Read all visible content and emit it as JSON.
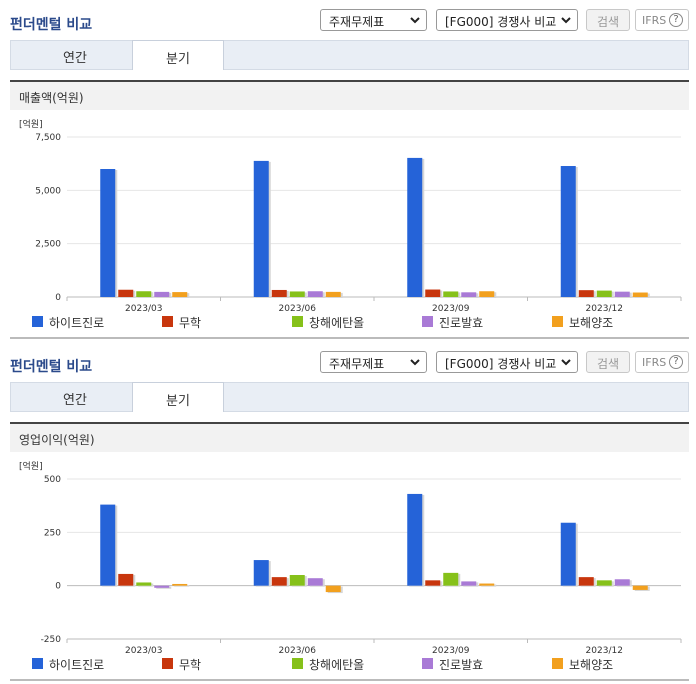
{
  "sections": [
    {
      "title": "펀더멘털 비교",
      "report_select": "주재무제표",
      "compare_select": "[FG000] 경쟁사 비교",
      "search_button": "검색",
      "ifrs_label": "IFRS",
      "ifrs_help": "?",
      "tabs": [
        "연간",
        "분기"
      ],
      "active_tab": 1,
      "panel_title": "매출액(억원)"
    },
    {
      "title": "펀더멘털 비교",
      "report_select": "주재무제표",
      "compare_select": "[FG000] 경쟁사 비교",
      "search_button": "검색",
      "ifrs_label": "IFRS",
      "ifrs_help": "?",
      "tabs": [
        "연간",
        "분기"
      ],
      "active_tab": 1,
      "panel_title": "영업이익(억원)"
    }
  ],
  "legend": [
    {
      "label": "하이트진로",
      "color": "#2563d8"
    },
    {
      "label": "무학",
      "color": "#c8360d"
    },
    {
      "label": "창해에탄올",
      "color": "#86c11a"
    },
    {
      "label": "진로발효",
      "color": "#a97ad6"
    },
    {
      "label": "보해양조",
      "color": "#f2a01e"
    }
  ],
  "chart_data": [
    {
      "type": "bar",
      "title": "매출액(억원)",
      "ylabel": "[억원]",
      "ylim": [
        0,
        7500
      ],
      "yticks": [
        0,
        2500,
        5000,
        7500
      ],
      "ytick_labels": [
        "0",
        "2,500",
        "5,000",
        "7,500"
      ],
      "categories": [
        "2023/03",
        "2023/06",
        "2023/09",
        "2023/12"
      ],
      "series": [
        {
          "name": "하이트진로",
          "values": [
            6000,
            6380,
            6520,
            6140
          ]
        },
        {
          "name": "무학",
          "values": [
            340,
            330,
            350,
            320
          ]
        },
        {
          "name": "창해에탄올",
          "values": [
            270,
            260,
            260,
            300
          ]
        },
        {
          "name": "진로발효",
          "values": [
            240,
            270,
            220,
            250
          ]
        },
        {
          "name": "보해양조",
          "values": [
            230,
            240,
            270,
            210
          ]
        }
      ]
    },
    {
      "type": "bar",
      "title": "영업이익(억원)",
      "ylabel": "[억원]",
      "ylim": [
        -250,
        500
      ],
      "yticks": [
        -250,
        0,
        250,
        500
      ],
      "ytick_labels": [
        "-250",
        "0",
        "250",
        "500"
      ],
      "categories": [
        "2023/03",
        "2023/06",
        "2023/09",
        "2023/12"
      ],
      "series": [
        {
          "name": "하이트진로",
          "values": [
            380,
            120,
            430,
            295
          ]
        },
        {
          "name": "무학",
          "values": [
            55,
            40,
            25,
            40
          ]
        },
        {
          "name": "창해에탄올",
          "values": [
            15,
            50,
            60,
            25
          ]
        },
        {
          "name": "진로발효",
          "values": [
            -10,
            35,
            20,
            30
          ]
        },
        {
          "name": "보해양조",
          "values": [
            8,
            -30,
            10,
            -20
          ]
        }
      ]
    }
  ]
}
